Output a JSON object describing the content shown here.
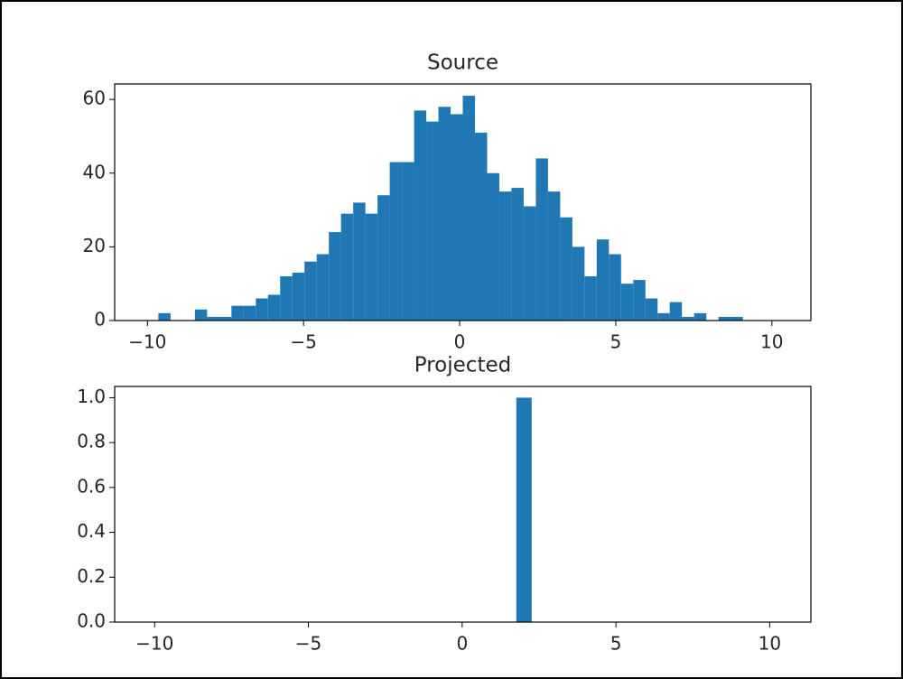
{
  "chart_data": [
    {
      "type": "histogram",
      "title": "Source",
      "color": "#1f77b4",
      "bins": [
        -9.65,
        -9.26,
        -8.87,
        -8.48,
        -8.09,
        -7.7,
        -7.31,
        -6.92,
        -6.53,
        -6.14,
        -5.75,
        -5.36,
        -4.97,
        -4.58,
        -4.19,
        -3.8,
        -3.41,
        -3.02,
        -2.63,
        -2.24,
        -1.85,
        -1.46,
        -1.07,
        -0.68,
        -0.29,
        0.1,
        0.49,
        0.88,
        1.27,
        1.66,
        2.05,
        2.44,
        2.83,
        3.22,
        3.61,
        4.0,
        4.39,
        4.78,
        5.17,
        5.56,
        5.95,
        6.34,
        6.73,
        7.12,
        7.51,
        7.9,
        8.29,
        8.68,
        9.07,
        9.46,
        9.85
      ],
      "counts": [
        2,
        0,
        0,
        3,
        1,
        1,
        4,
        4,
        6,
        7,
        12,
        13,
        16,
        18,
        24,
        29,
        32,
        29,
        34,
        43,
        43,
        57,
        54,
        58,
        56,
        61,
        51,
        40,
        35,
        36,
        31,
        44,
        35,
        28,
        20,
        12,
        22,
        18,
        10,
        11,
        6,
        2,
        5,
        1,
        2,
        0,
        1,
        1,
        0,
        0
      ],
      "xlim": [
        -11.05,
        11.25
      ],
      "ylim": [
        0,
        64.2
      ],
      "xticks": [
        {
          "value": -10,
          "label": "−10"
        },
        {
          "value": -5,
          "label": "−5"
        },
        0,
        5,
        10
      ],
      "yticks": [
        0,
        20,
        40,
        60
      ]
    },
    {
      "type": "histogram",
      "title": "Projected",
      "color": "#1f77b4",
      "bins": [
        1.76,
        2.26
      ],
      "counts": [
        1
      ],
      "xlim": [
        -11.3,
        11.34
      ],
      "ylim": [
        0,
        1.05
      ],
      "xticks": [
        {
          "value": -10,
          "label": "−10"
        },
        {
          "value": -5,
          "label": "−5"
        },
        0,
        5,
        10
      ],
      "yticks": [
        {
          "value": 0,
          "label": "0.0"
        },
        {
          "value": 0.2,
          "label": "0.2"
        },
        {
          "value": 0.4,
          "label": "0.4"
        },
        {
          "value": 0.6,
          "label": "0.6"
        },
        {
          "value": 0.8,
          "label": "0.8"
        },
        {
          "value": 1,
          "label": "1.0"
        }
      ]
    }
  ]
}
